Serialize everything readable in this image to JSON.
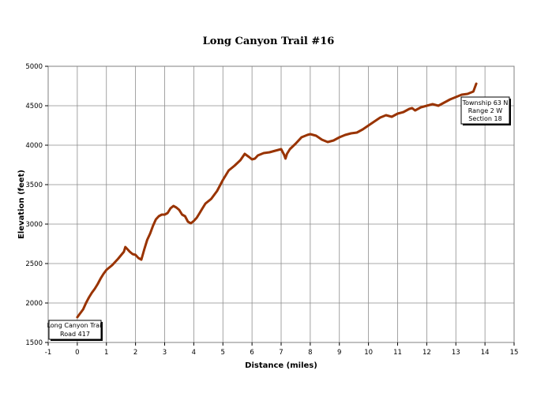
{
  "chart_data": {
    "type": "line",
    "title": "Long Canyon Trail #16",
    "xlabel": "Distance (miles)",
    "ylabel": "Elevation (feet)",
    "xlim": [
      -1,
      15
    ],
    "ylim": [
      1500,
      5000
    ],
    "x_ticks": [
      -1,
      0,
      1,
      2,
      3,
      4,
      5,
      6,
      7,
      8,
      9,
      10,
      11,
      12,
      13,
      14,
      15
    ],
    "y_ticks": [
      1500,
      2000,
      2500,
      3000,
      3500,
      4000,
      4500,
      5000
    ],
    "grid": true,
    "line_color": "#993300",
    "series": [
      {
        "x": [
          0,
          0.1,
          0.2,
          0.3,
          0.4,
          0.5,
          0.6,
          0.7,
          0.8,
          0.9,
          1.0,
          1.2,
          1.4,
          1.6,
          1.65,
          1.7,
          1.8,
          1.9,
          2.0,
          2.1,
          2.2,
          2.3,
          2.4,
          2.5,
          2.6,
          2.7,
          2.8,
          2.9,
          3.0,
          3.1,
          3.2,
          3.3,
          3.4,
          3.5,
          3.6,
          3.7,
          3.8,
          3.9,
          4.0,
          4.1,
          4.2,
          4.3,
          4.4,
          4.6,
          4.8,
          5.0,
          5.2,
          5.4,
          5.6,
          5.75,
          5.9,
          6.0,
          6.1,
          6.2,
          6.4,
          6.6,
          6.8,
          7.0,
          7.1,
          7.15,
          7.2,
          7.3,
          7.5,
          7.7,
          7.9,
          8.0,
          8.2,
          8.4,
          8.6,
          8.8,
          9.0,
          9.2,
          9.4,
          9.6,
          9.8,
          10.0,
          10.2,
          10.4,
          10.6,
          10.8,
          11.0,
          11.2,
          11.4,
          11.5,
          11.6,
          11.8,
          12.0,
          12.2,
          12.4,
          12.6,
          12.8,
          13.0,
          13.2,
          13.4,
          13.6,
          13.7
        ],
        "y": [
          1820,
          1870,
          1920,
          2000,
          2070,
          2130,
          2180,
          2240,
          2310,
          2370,
          2420,
          2480,
          2560,
          2650,
          2710,
          2690,
          2650,
          2620,
          2610,
          2570,
          2550,
          2680,
          2800,
          2880,
          2980,
          3060,
          3100,
          3120,
          3120,
          3140,
          3200,
          3230,
          3210,
          3180,
          3120,
          3100,
          3030,
          3010,
          3040,
          3080,
          3140,
          3200,
          3260,
          3320,
          3420,
          3560,
          3680,
          3740,
          3810,
          3890,
          3850,
          3820,
          3830,
          3870,
          3900,
          3910,
          3930,
          3950,
          3880,
          3830,
          3890,
          3950,
          4020,
          4100,
          4130,
          4140,
          4120,
          4070,
          4040,
          4060,
          4100,
          4130,
          4150,
          4160,
          4200,
          4250,
          4300,
          4350,
          4380,
          4360,
          4400,
          4420,
          4460,
          4470,
          4440,
          4480,
          4500,
          4520,
          4500,
          4540,
          4580,
          4610,
          4640,
          4650,
          4680,
          4780
        ]
      }
    ],
    "annotations": [
      {
        "lines": [
          "Long Canyon Trail",
          "Road 417"
        ]
      },
      {
        "lines": [
          "Township 63 N",
          "Range 2 W",
          "Section 18"
        ]
      }
    ]
  }
}
